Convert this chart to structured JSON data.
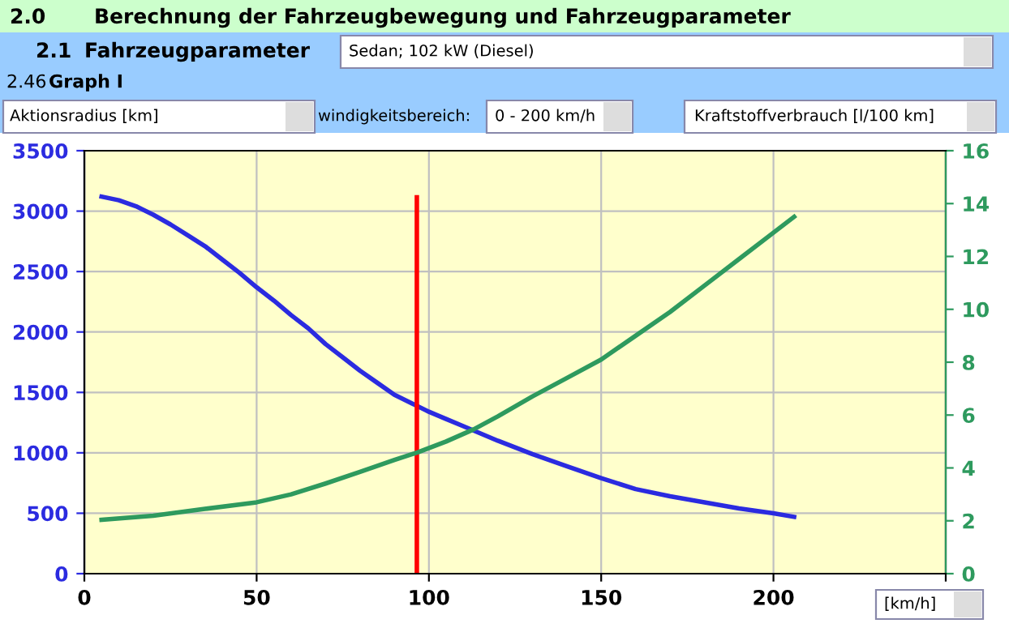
{
  "chart_data": {
    "type": "line",
    "title": "Berechnung der Fahrzeugbewegung und Fahrzeugparameter",
    "annotations": [
      "2.0",
      "2.1",
      "Fahrzeugparameter",
      "Sedan; 102 kW (Diesel)",
      "2.46",
      "Graph I",
      "windigkeitsbereich:",
      "0 - 200 km/h"
    ],
    "ylabel": "Aktionsradius [km]",
    "y2label": "Kraftstoffverbrauch [l/100 km]",
    "xlabel": "[km/h]",
    "series": [
      {
        "color": "#2b2be0",
        "x": [
          5,
          10,
          15,
          20,
          25,
          30,
          35,
          40,
          45,
          50,
          55,
          60,
          65,
          70,
          75,
          80,
          85,
          90,
          95,
          100,
          105,
          110,
          115,
          120,
          130,
          140,
          150,
          160,
          170,
          180,
          190,
          200,
          206
        ],
        "values": [
          3120,
          3090,
          3040,
          2970,
          2890,
          2800,
          2710,
          2600,
          2490,
          2370,
          2260,
          2140,
          2030,
          1900,
          1790,
          1680,
          1580,
          1480,
          1410,
          1340,
          1280,
          1220,
          1160,
          1100,
          990,
          890,
          790,
          700,
          640,
          590,
          540,
          500,
          470
        ]
      },
      {
        "color": "#2e9a5e",
        "axis": "y2",
        "x": [
          5,
          20,
          35,
          50,
          60,
          70,
          80,
          90,
          97,
          105,
          113,
          120,
          130,
          140,
          150,
          160,
          170,
          180,
          190,
          200,
          206
        ],
        "values": [
          2.04,
          2.19,
          2.45,
          2.7,
          3.0,
          3.41,
          3.85,
          4.3,
          4.6,
          5.0,
          5.46,
          5.95,
          6.7,
          7.4,
          8.1,
          9.0,
          9.9,
          10.9,
          11.9,
          12.9,
          13.5
        ]
      }
    ],
    "xlim": [
      0,
      250
    ],
    "xticks": [
      0,
      50,
      100,
      150,
      200,
      {
        "value": 250,
        "label": null
      }
    ],
    "ylim": [
      0,
      3500
    ],
    "yticks": [
      0,
      500,
      1000,
      1500,
      2000,
      2500,
      3000,
      3500
    ],
    "y2lim": [
      0,
      16
    ],
    "y2ticks": [
      0,
      2,
      4,
      6,
      8,
      10,
      12,
      14,
      16
    ],
    "ref_lines": [
      {
        "axis": "x",
        "value": 96.5,
        "color": "#ff0000"
      }
    ],
    "grid": true,
    "legend": false,
    "marker": "none",
    "line_style": "solid"
  }
}
